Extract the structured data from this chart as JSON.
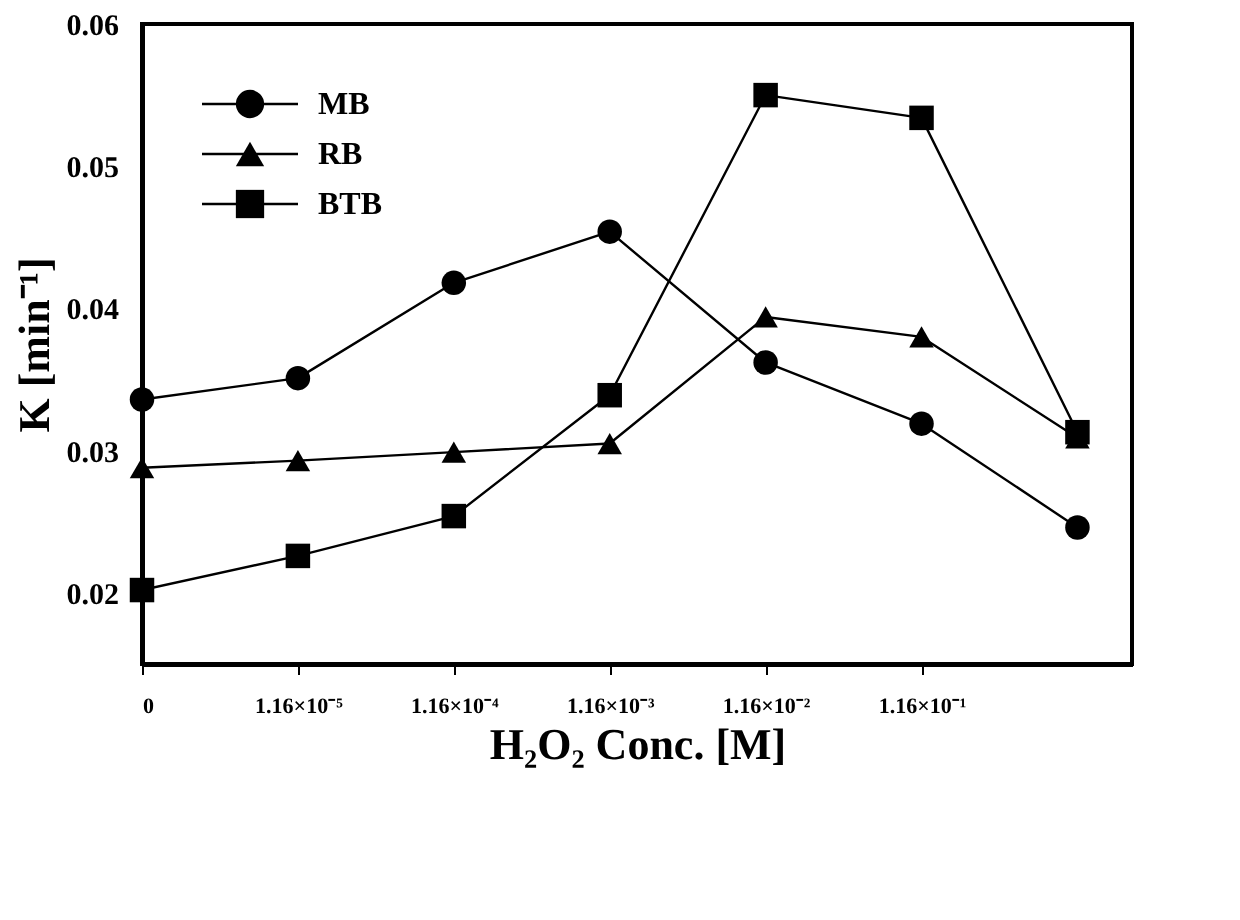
{
  "chart_data": {
    "type": "line",
    "xlabel": "H₂O₂ Conc. [M]",
    "ylabel": "K [min⁻¹]",
    "categories": [
      "0",
      "1.16×10⁻⁵",
      "1.16×10⁻⁴",
      "1.16×10⁻³",
      "1.16×10⁻²",
      "1.16×10⁻¹",
      null
    ],
    "ylim": [
      0.015,
      0.06
    ],
    "yticks": [
      0.02,
      0.03,
      0.04,
      0.05,
      0.06
    ],
    "series": [
      {
        "name": "MB",
        "color": "#000000",
        "marker": "circle",
        "values": [
          0.0336,
          0.0351,
          0.0418,
          0.0454,
          0.0362,
          0.0319,
          0.0246
        ]
      },
      {
        "name": "RB",
        "color": "#000000",
        "marker": "triangle",
        "values": [
          0.0288,
          0.0293,
          0.0299,
          0.0305,
          0.0394,
          0.038,
          0.0309
        ]
      },
      {
        "name": "BTB",
        "color": "#000000",
        "marker": "square",
        "values": [
          0.0202,
          0.0226,
          0.0254,
          0.0339,
          0.055,
          0.0534,
          0.0313
        ]
      }
    ],
    "grid": false,
    "legend": "top left",
    "line_style": "solid"
  }
}
